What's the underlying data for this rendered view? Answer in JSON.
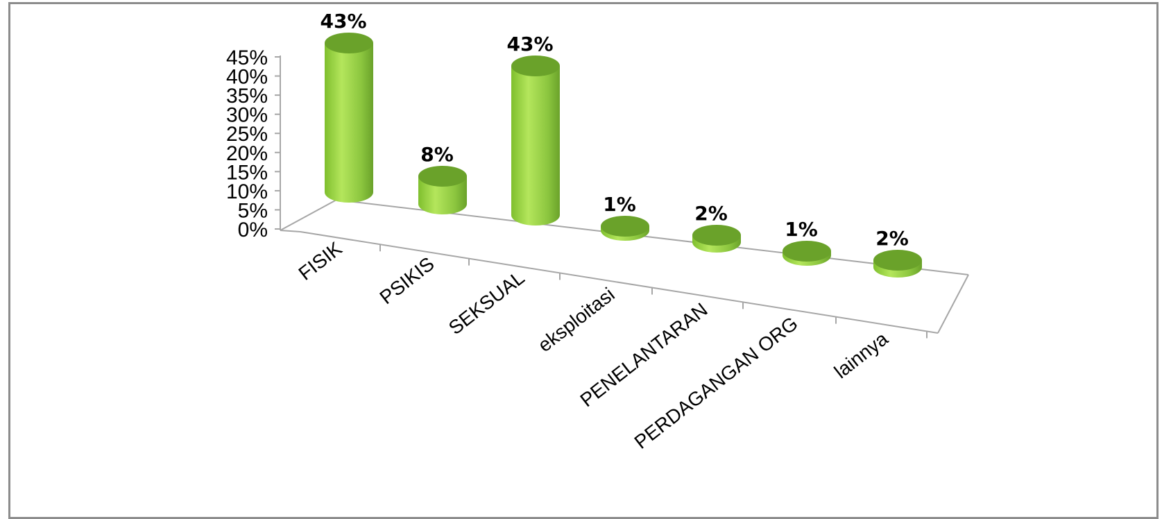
{
  "chart_data": {
    "type": "bar",
    "style": "3d-cylinder",
    "categories": [
      "FISIK",
      "PSIKIS",
      "SEKSUAL",
      "eksploitasi",
      "PENELANTARAN",
      "PERDAGANGAN ORG",
      "lainnya"
    ],
    "values": [
      43,
      8,
      43,
      1,
      2,
      1,
      2
    ],
    "data_labels": [
      "43%",
      "8%",
      "43%",
      "1%",
      "2%",
      "1%",
      "2%"
    ],
    "y_ticks": [
      "0%",
      "5%",
      "10%",
      "15%",
      "20%",
      "25%",
      "30%",
      "35%",
      "40%",
      "45%"
    ],
    "ylim": [
      0,
      45
    ],
    "grid": false,
    "legend": "none",
    "colors": {
      "bar_side": "#8cc63f",
      "bar_top": "#6aa22a",
      "bar_highlight": "#c6ec7a",
      "axis": "#a6a6a6",
      "frame": "#8c8c8c"
    }
  }
}
